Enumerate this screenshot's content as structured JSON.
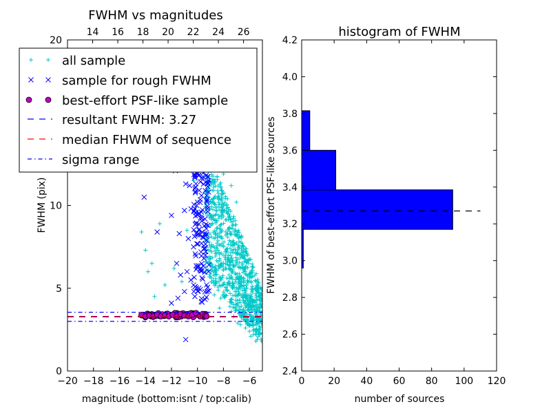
{
  "chart_data": [
    {
      "type": "scatter",
      "title": "FWHM vs magnitudes",
      "xlabel": "magnitude (bottom:isnt / top:calib)",
      "ylabel": "FWHM (pix)",
      "xlim": [
        -20,
        -5
      ],
      "ylim": [
        0,
        20
      ],
      "xticks": [
        -20,
        -18,
        -16,
        -14,
        -12,
        -10,
        -8,
        -6
      ],
      "xtick_labels": [
        "−20",
        "−18",
        "−16",
        "−14",
        "−12",
        "−10",
        "−8",
        "−6"
      ],
      "yticks": [
        0,
        5,
        10,
        20
      ],
      "ytick_labels": [
        "0",
        "5",
        "10",
        "20"
      ],
      "top_xlabel_ticks": [
        14,
        16,
        18,
        20,
        22,
        24,
        26
      ],
      "top_xlim": [
        12.0,
        27.5
      ],
      "legend_position": "top-left",
      "legend": [
        {
          "label": "all sample",
          "marker": "plus",
          "color": "#00c8c8"
        },
        {
          "label": "sample for rough FWHM",
          "marker": "x",
          "color": "#0000ff"
        },
        {
          "label": "best-effort PSF-like sample",
          "marker": "circle",
          "color": "#c000c0"
        },
        {
          "label": "resultant FWHM: 3.27",
          "marker": "dashed",
          "color": "#0000ff"
        },
        {
          "label": "median FHWM of sequence",
          "marker": "dashed",
          "color": "#ff0000"
        },
        {
          "label": "sigma range",
          "marker": "dashdot",
          "color": "#0000ff"
        }
      ],
      "hlines": [
        {
          "name": "resultant FWHM",
          "y": 3.27,
          "color": "#0000ff",
          "style": "dashed"
        },
        {
          "name": "median FHWM",
          "y": 3.3,
          "color": "#ff0000",
          "style": "dashed"
        },
        {
          "name": "sigma upper",
          "y": 3.55,
          "color": "#0000ff",
          "style": "dashdot"
        },
        {
          "name": "sigma lower",
          "y": 3.0,
          "color": "#0000ff",
          "style": "dashdot"
        }
      ],
      "series": [
        {
          "name": "all sample",
          "marker": "plus",
          "color": "#00c8c8",
          "density": "high",
          "points": [
            [
              -14.3,
              8.4
            ],
            [
              -14.0,
              7.3
            ],
            [
              -13.8,
              6.0
            ],
            [
              -13.5,
              6.5
            ],
            [
              -13.3,
              4.5
            ],
            [
              -12.9,
              8.9
            ],
            [
              -12.5,
              5.2
            ],
            [
              -11.8,
              6.2
            ],
            [
              -11.2,
              5.4
            ],
            [
              -10.8,
              8.5
            ],
            [
              -10.3,
              11.5
            ],
            [
              -10.0,
              9.6
            ],
            [
              -9.6,
              12.3
            ],
            [
              -9.4,
              10.8
            ],
            [
              -9.3,
              7.9
            ],
            [
              -9.1,
              14.6
            ],
            [
              -9.0,
              5.7
            ],
            [
              -8.8,
              16.3
            ],
            [
              -8.7,
              4.6
            ],
            [
              -8.5,
              17.8
            ],
            [
              -8.4,
              13.2
            ],
            [
              -8.3,
              3.8
            ],
            [
              -8.2,
              19.1
            ],
            [
              -8.1,
              15.7
            ],
            [
              -8.0,
              11.9
            ],
            [
              -8.0,
              6.1
            ],
            [
              -7.9,
              9.7
            ],
            [
              -7.8,
              17.4
            ],
            [
              -7.7,
              7.4
            ],
            [
              -7.6,
              5.3
            ],
            [
              -7.5,
              13.5
            ],
            [
              -7.4,
              3.6
            ],
            [
              -7.3,
              8.8
            ],
            [
              -7.2,
              6.4
            ],
            [
              -7.1,
              4.8
            ],
            [
              -7.0,
              10.2
            ],
            [
              -6.9,
              2.9
            ],
            [
              -6.8,
              7.1
            ],
            [
              -6.7,
              5.0
            ],
            [
              -6.6,
              3.4
            ],
            [
              -6.5,
              6.2
            ],
            [
              -6.4,
              4.1
            ],
            [
              -6.3,
              2.6
            ],
            [
              -6.2,
              5.2
            ],
            [
              -6.1,
              3.8
            ],
            [
              -6.0,
              2.4
            ],
            [
              -5.9,
              4.4
            ],
            [
              -5.8,
              3.1
            ],
            [
              -5.7,
              2.2
            ],
            [
              -5.6,
              3.6
            ],
            [
              -5.5,
              2.5
            ],
            [
              -5.4,
              1.9
            ],
            [
              -5.3,
              3.2
            ],
            [
              -5.2,
              2.3
            ],
            [
              -8.6,
              8.3
            ],
            [
              -8.4,
              9.9
            ],
            [
              -8.3,
              6.8
            ],
            [
              -8.1,
              8.0
            ],
            [
              -7.9,
              12.8
            ],
            [
              -7.7,
              10.4
            ],
            [
              -7.6,
              8.6
            ],
            [
              -7.4,
              11.2
            ],
            [
              -7.3,
              6.0
            ],
            [
              -7.1,
              9.1
            ],
            [
              -6.9,
              8.4
            ],
            [
              -6.8,
              5.6
            ],
            [
              -6.6,
              7.0
            ],
            [
              -6.4,
              6.8
            ],
            [
              -6.2,
              4.6
            ],
            [
              -6.0,
              5.8
            ],
            [
              -5.8,
              4.8
            ],
            [
              -5.6,
              4.2
            ],
            [
              -5.4,
              3.9
            ],
            [
              -8.9,
              7.2
            ],
            [
              -8.7,
              10.1
            ],
            [
              -8.5,
              5.4
            ],
            [
              -8.2,
              4.4
            ],
            [
              -7.8,
              4.9
            ],
            [
              -7.5,
              3.9
            ],
            [
              -7.2,
              3.3
            ],
            [
              -6.7,
              2.8
            ],
            [
              -6.3,
              3.0
            ],
            [
              -5.9,
              2.1
            ],
            [
              -5.5,
              1.8
            ]
          ]
        },
        {
          "name": "sample for rough FWHM",
          "marker": "x",
          "color": "#0000ff",
          "points": [
            [
              -14.1,
              10.5
            ],
            [
              -13.1,
              8.4
            ],
            [
              -12.0,
              9.4
            ],
            [
              -11.7,
              12.1
            ],
            [
              -11.4,
              8.3
            ],
            [
              -11.2,
              12.6
            ],
            [
              -11.0,
              9.7
            ],
            [
              -10.9,
              11.3
            ],
            [
              -10.9,
              1.9
            ],
            [
              -10.7,
              8.0
            ],
            [
              -10.6,
              11.2
            ],
            [
              -10.5,
              9.8
            ],
            [
              -10.4,
              13.3
            ],
            [
              -10.3,
              7.5
            ],
            [
              -10.2,
              12.8
            ],
            [
              -10.1,
              8.9
            ],
            [
              -10.0,
              10.2
            ],
            [
              -9.9,
              11.8
            ],
            [
              -9.8,
              6.1
            ],
            [
              -9.7,
              9.6
            ],
            [
              -9.6,
              12.9
            ],
            [
              -9.5,
              7.4
            ],
            [
              -9.4,
              10.9
            ],
            [
              -9.3,
              5.2
            ],
            [
              -9.2,
              8.8
            ],
            [
              -11.6,
              6.5
            ],
            [
              -11.3,
              5.8
            ],
            [
              -11.0,
              4.8
            ],
            [
              -10.8,
              6.0
            ],
            [
              -10.5,
              5.5
            ],
            [
              -10.2,
              4.5
            ],
            [
              -9.9,
              5.0
            ],
            [
              -9.7,
              4.2
            ],
            [
              -9.5,
              6.8
            ],
            [
              -9.3,
              7.9
            ],
            [
              -12.0,
              4.1
            ],
            [
              -11.5,
              4.4
            ]
          ]
        },
        {
          "name": "best-effort PSF-like sample",
          "marker": "circle",
          "color": "#c000c0",
          "points": [
            [
              -14.3,
              3.4
            ],
            [
              -14.0,
              3.3
            ],
            [
              -13.7,
              3.35
            ],
            [
              -13.4,
              3.3
            ],
            [
              -13.1,
              3.4
            ],
            [
              -12.8,
              3.3
            ],
            [
              -12.5,
              3.35
            ],
            [
              -12.2,
              3.3
            ],
            [
              -11.9,
              3.4
            ],
            [
              -11.6,
              3.3
            ],
            [
              -11.3,
              3.45
            ],
            [
              -11.0,
              3.35
            ],
            [
              -10.7,
              3.3
            ],
            [
              -10.4,
              3.4
            ],
            [
              -10.1,
              3.5
            ],
            [
              -9.8,
              3.3
            ],
            [
              -9.6,
              3.45
            ],
            [
              -9.4,
              3.35
            ],
            [
              -9.3,
              3.3
            ]
          ]
        }
      ]
    },
    {
      "type": "bar",
      "orientation": "horizontal",
      "title": "histogram of FWHM",
      "xlabel": "number of sources",
      "ylabel": "FWHM of best-effort PSF-like sources",
      "xlim": [
        0,
        120
      ],
      "ylim": [
        2.4,
        4.2
      ],
      "xticks": [
        0,
        20,
        40,
        60,
        80,
        100,
        120
      ],
      "yticks": [
        2.4,
        2.6,
        2.8,
        3.0,
        3.2,
        3.4,
        3.6,
        3.8,
        4.0,
        4.2
      ],
      "ytick_labels": [
        "2.4",
        "2.6",
        "2.8",
        "3.0",
        "3.2",
        "3.4",
        "3.6",
        "3.8",
        "4.0",
        "4.2"
      ],
      "bins": [
        [
          2.96,
          3.17
        ],
        [
          3.17,
          3.385
        ],
        [
          3.385,
          3.6
        ],
        [
          3.6,
          3.815
        ]
      ],
      "counts": [
        1,
        93,
        21,
        5
      ],
      "bar_color": "#0000ff",
      "hline": {
        "y": 3.27,
        "xmax": 110,
        "style": "dashed",
        "color": "#000000"
      }
    }
  ]
}
